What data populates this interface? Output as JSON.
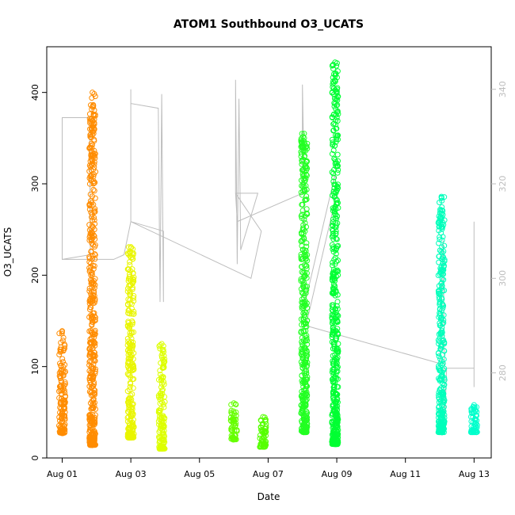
{
  "chart_data": {
    "type": "scatter",
    "title": "ATOM1 Southbound O3_UCATS",
    "xlabel": "Date",
    "ylabel": "O3_UCATS",
    "x_ticks": [
      "Aug 01",
      "Aug 03",
      "Aug 05",
      "Aug 07",
      "Aug 09",
      "Aug 11",
      "Aug 13"
    ],
    "x_tick_days": [
      1,
      3,
      5,
      7,
      9,
      11,
      13
    ],
    "xlim": [
      0.55,
      13.5
    ],
    "y_ticks": [
      0,
      100,
      200,
      300,
      400
    ],
    "ylim": [
      0,
      450
    ],
    "y2_ticks": [
      280,
      300,
      320,
      340
    ],
    "y2lim": [
      262,
      349
    ],
    "grid": false,
    "series": [
      {
        "kind": "o3_points",
        "marker": "open-circle",
        "segments": [
          {
            "day": 1.0,
            "y_min": 27,
            "y_max": 139,
            "color": "#ff8c00"
          },
          {
            "day": 1.88,
            "y_min": 14,
            "y_max": 400,
            "color": "#ff8c00"
          },
          {
            "day": 3.0,
            "y_min": 22,
            "y_max": 231,
            "color": "#e9f500"
          },
          {
            "day": 3.9,
            "y_min": 10,
            "y_max": 125,
            "color": "#ddff00"
          },
          {
            "day": 6.0,
            "y_min": 20,
            "y_max": 60,
            "color": "#66ff00"
          },
          {
            "day": 6.85,
            "y_min": 12,
            "y_max": 45,
            "color": "#55ff00"
          },
          {
            "day": 8.05,
            "y_min": 28,
            "y_max": 355,
            "color": "#22ff22"
          },
          {
            "day": 8.95,
            "y_min": 15,
            "y_max": 433,
            "color": "#00ff33"
          },
          {
            "day": 12.05,
            "y_min": 28,
            "y_max": 286,
            "color": "#00ffbb"
          },
          {
            "day": 13.0,
            "y_min": 28,
            "y_max": 58,
            "color": "#00ffcc"
          }
        ]
      },
      {
        "kind": "theta_line",
        "axis": "right",
        "color": "#bdbdbd",
        "path": [
          [
            1.0,
            318
          ],
          [
            1.0,
            334
          ],
          [
            1.8,
            334
          ],
          [
            1.8,
            330
          ],
          [
            1.82,
            305
          ],
          [
            1.0,
            304
          ],
          [
            1.0,
            330
          ],
          [
            1.0,
            304
          ],
          [
            2.5,
            304
          ],
          [
            2.8,
            305
          ],
          [
            3.0,
            312
          ],
          [
            3.0,
            340
          ],
          [
            3.0,
            337
          ],
          [
            3.8,
            336
          ],
          [
            3.85,
            295
          ],
          [
            3.9,
            339
          ],
          [
            3.95,
            295
          ],
          [
            3.95,
            310
          ],
          [
            3.0,
            312
          ],
          [
            6.5,
            300
          ],
          [
            6.8,
            310
          ],
          [
            6.05,
            318
          ],
          [
            6.05,
            342
          ],
          [
            6.1,
            303
          ],
          [
            6.15,
            338
          ],
          [
            6.2,
            306
          ],
          [
            6.7,
            318
          ],
          [
            6.05,
            318
          ],
          [
            6.1,
            312
          ],
          [
            8.0,
            318
          ],
          [
            8.0,
            341
          ],
          [
            8.05,
            320
          ],
          [
            8.05,
            294
          ],
          [
            8.95,
            322
          ],
          [
            9.0,
            318
          ],
          [
            8.1,
            290
          ],
          [
            12.0,
            282
          ],
          [
            12.1,
            308
          ],
          [
            12.15,
            270
          ],
          [
            12.2,
            281
          ],
          [
            13.0,
            281
          ],
          [
            13.0,
            290
          ],
          [
            13.0,
            312
          ],
          [
            13.0,
            277
          ]
        ]
      }
    ]
  }
}
